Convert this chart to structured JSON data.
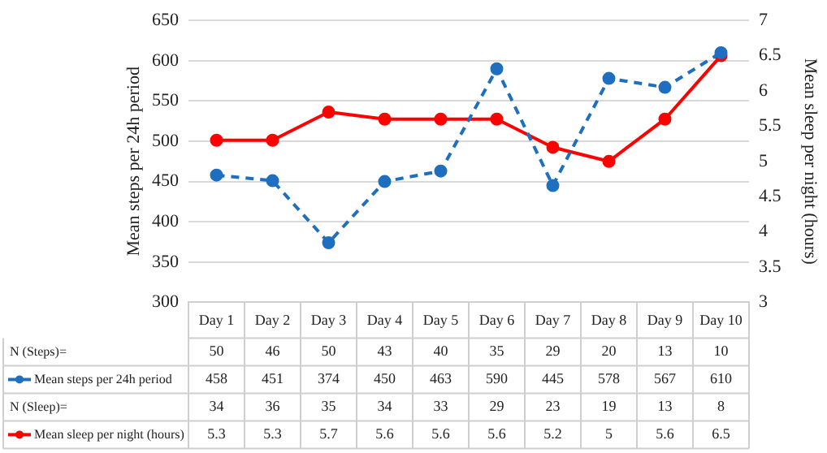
{
  "chart_data": {
    "type": "line",
    "ylabel": "Mean steps per 24h period",
    "y2label": "Mean sleep per night (hours)",
    "categories": [
      "Day 1",
      "Day 2",
      "Day 3",
      "Day 4",
      "Day 5",
      "Day 6",
      "Day 7",
      "Day 8",
      "Day 9",
      "Day 10"
    ],
    "series": [
      {
        "name": "Mean steps per 24h period",
        "color": "#1f6fc1",
        "line_style": "dashed",
        "values": [
          458,
          451,
          374,
          450,
          463,
          590,
          445,
          578,
          567,
          610
        ]
      },
      {
        "name": "Mean sleep per night (hours)",
        "color": "#ff0000",
        "line_style": "solid",
        "axis": "y2",
        "values": [
          5.3,
          5.3,
          5.7,
          5.6,
          5.6,
          5.6,
          5.2,
          5,
          5.6,
          6.5
        ]
      }
    ],
    "ylim": [
      300,
      650
    ],
    "yticks": [
      300,
      350,
      400,
      450,
      500,
      550,
      600,
      650
    ],
    "y2lim": [
      3,
      7
    ],
    "y2ticks": [
      3,
      3.5,
      4,
      4.5,
      5,
      5.5,
      6,
      6.5,
      7
    ],
    "grid": "y",
    "marker": "circle",
    "legend": "bottom",
    "data_labels": true,
    "annotations": [
      "N (Steps)=",
      "50",
      "46",
      "50",
      "43",
      "40",
      "35",
      "29",
      "20",
      "13",
      "10",
      "N (Sleep)=",
      "34",
      "36",
      "35",
      "34",
      "33",
      "29",
      "23",
      "19",
      "13",
      "8"
    ]
  }
}
